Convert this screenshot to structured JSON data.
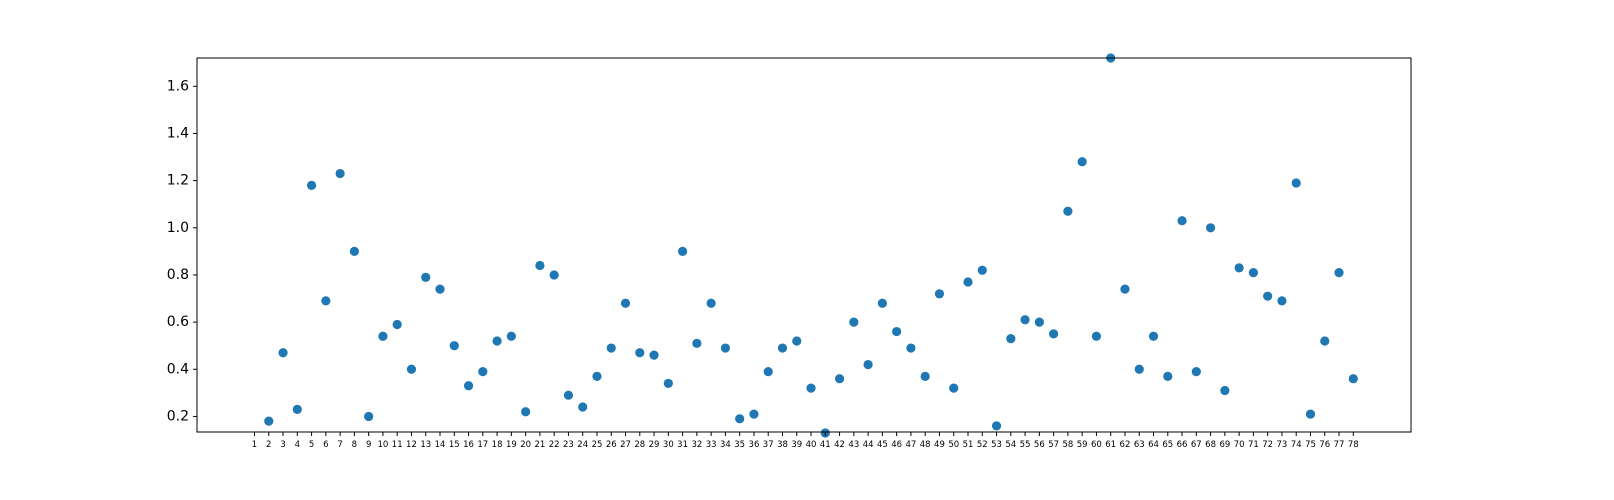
{
  "colors": {
    "marker": "#1f77b4",
    "axes": "#000000",
    "background": "#ffffff"
  },
  "chart_data": {
    "type": "scatter",
    "title": "",
    "xlabel": "",
    "ylabel": "",
    "grid": false,
    "legend": "none",
    "x": [
      "1",
      "2",
      "3",
      "4",
      "5",
      "6",
      "7",
      "8",
      "9",
      "10",
      "11",
      "12",
      "13",
      "14",
      "15",
      "16",
      "17",
      "18",
      "19",
      "20",
      "21",
      "22",
      "23",
      "24",
      "25",
      "26",
      "27",
      "28",
      "29",
      "30",
      "31",
      "32",
      "33",
      "34",
      "35",
      "36",
      "37",
      "38",
      "39",
      "40",
      "41",
      "42",
      "43",
      "44",
      "45",
      "46",
      "47",
      "48",
      "49",
      "50",
      "51",
      "52",
      "53",
      "54",
      "55",
      "56",
      "57",
      "58",
      "59",
      "60",
      "61",
      "62",
      "63",
      "64",
      "65",
      "66",
      "67",
      "68",
      "69",
      "70",
      "71",
      "72",
      "73",
      "74",
      "75",
      "76",
      "77",
      "78"
    ],
    "y": [
      null,
      0.18,
      0.47,
      0.23,
      1.18,
      0.69,
      1.23,
      0.9,
      0.2,
      0.54,
      0.59,
      0.4,
      0.79,
      0.74,
      0.5,
      0.33,
      0.39,
      0.52,
      0.54,
      0.22,
      0.84,
      0.8,
      0.29,
      0.24,
      0.37,
      0.49,
      0.68,
      0.47,
      0.46,
      0.34,
      0.9,
      0.51,
      0.68,
      0.49,
      0.19,
      0.21,
      0.39,
      0.49,
      0.52,
      0.32,
      0.13,
      0.36,
      0.6,
      0.42,
      0.68,
      0.56,
      0.49,
      0.37,
      0.72,
      0.32,
      0.77,
      0.82,
      0.16,
      0.53,
      0.61,
      0.6,
      0.55,
      1.07,
      1.28,
      0.54,
      1.72,
      0.74,
      0.4,
      0.54,
      0.37,
      1.03,
      0.39,
      1.0,
      0.31,
      0.83,
      0.81,
      0.71,
      0.69,
      1.19,
      0.21,
      0.52,
      0.81,
      0.36
    ],
    "yticks": [
      "0.2",
      "0.4",
      "0.6",
      "0.8",
      "1.0",
      "1.2",
      "1.4",
      "1.6"
    ],
    "ylim": [
      0.134,
      1.72
    ]
  }
}
